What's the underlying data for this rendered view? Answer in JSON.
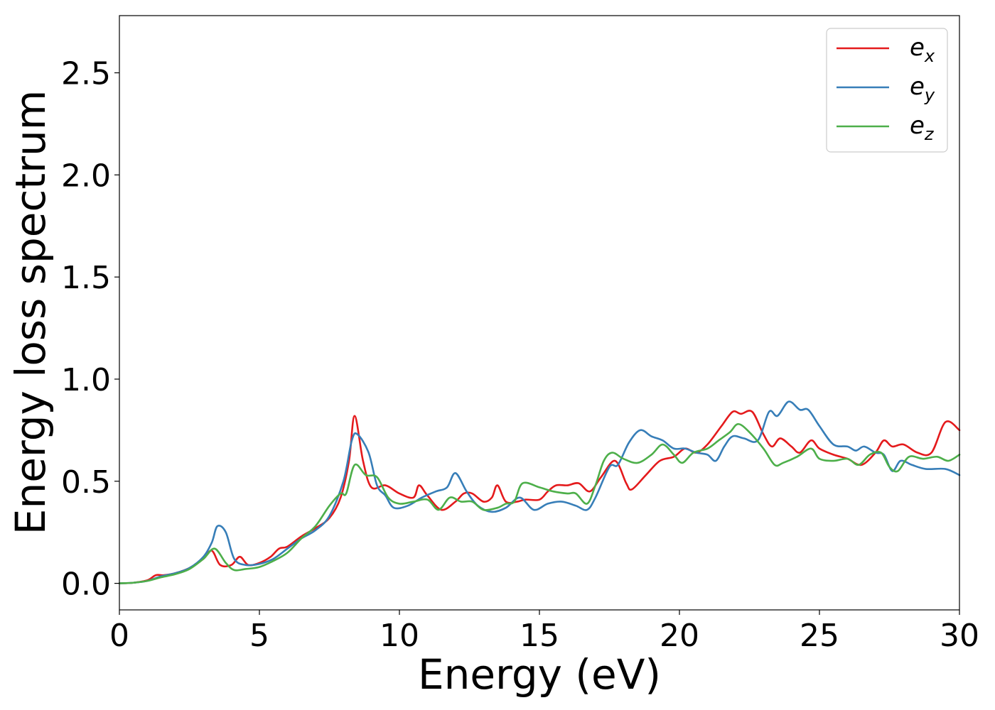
{
  "chart_data": {
    "type": "line",
    "xlabel": "Energy (eV)",
    "ylabel": "Energy loss spectrum",
    "xlim": [
      0,
      30
    ],
    "ylim": [
      -0.13,
      2.78
    ],
    "xticks": [
      0,
      5,
      10,
      15,
      20,
      25,
      30
    ],
    "xtick_labels": [
      "0",
      "5",
      "10",
      "15",
      "20",
      "25",
      "30"
    ],
    "yticks": [
      0.0,
      0.5,
      1.0,
      1.5,
      2.0,
      2.5
    ],
    "ytick_labels": [
      "0.0",
      "0.5",
      "1.0",
      "1.5",
      "2.0",
      "2.5"
    ],
    "grid": false,
    "legend_position": "top-right",
    "series": [
      {
        "name": "e",
        "subscript": "x",
        "color": "#e41a1c",
        "points": [
          [
            0,
            0
          ],
          [
            0.5,
            0.003
          ],
          [
            1,
            0.015
          ],
          [
            1.3,
            0.04
          ],
          [
            1.6,
            0.04
          ],
          [
            2,
            0.05
          ],
          [
            2.5,
            0.075
          ],
          [
            3,
            0.12
          ],
          [
            3.3,
            0.16
          ],
          [
            3.6,
            0.09
          ],
          [
            4,
            0.09
          ],
          [
            4.3,
            0.13
          ],
          [
            4.6,
            0.09
          ],
          [
            5,
            0.1
          ],
          [
            5.4,
            0.13
          ],
          [
            5.7,
            0.17
          ],
          [
            6,
            0.18
          ],
          [
            6.5,
            0.23
          ],
          [
            7,
            0.27
          ],
          [
            7.5,
            0.32
          ],
          [
            7.9,
            0.42
          ],
          [
            8.2,
            0.6
          ],
          [
            8.4,
            0.82
          ],
          [
            8.7,
            0.6
          ],
          [
            9,
            0.47
          ],
          [
            9.5,
            0.48
          ],
          [
            10,
            0.44
          ],
          [
            10.5,
            0.42
          ],
          [
            10.7,
            0.48
          ],
          [
            11,
            0.43
          ],
          [
            11.5,
            0.36
          ],
          [
            12,
            0.4
          ],
          [
            12.3,
            0.44
          ],
          [
            12.6,
            0.44
          ],
          [
            13,
            0.4
          ],
          [
            13.3,
            0.42
          ],
          [
            13.5,
            0.48
          ],
          [
            13.8,
            0.4
          ],
          [
            14.2,
            0.4
          ],
          [
            14.5,
            0.41
          ],
          [
            15,
            0.41
          ],
          [
            15.3,
            0.45
          ],
          [
            15.6,
            0.48
          ],
          [
            16,
            0.48
          ],
          [
            16.4,
            0.49
          ],
          [
            16.8,
            0.45
          ],
          [
            17.2,
            0.52
          ],
          [
            17.7,
            0.6
          ],
          [
            18.1,
            0.49
          ],
          [
            18.3,
            0.46
          ],
          [
            18.8,
            0.53
          ],
          [
            19.3,
            0.6
          ],
          [
            19.8,
            0.62
          ],
          [
            20.2,
            0.66
          ],
          [
            20.6,
            0.64
          ],
          [
            21,
            0.68
          ],
          [
            21.5,
            0.77
          ],
          [
            21.9,
            0.84
          ],
          [
            22.2,
            0.83
          ],
          [
            22.6,
            0.84
          ],
          [
            23,
            0.73
          ],
          [
            23.3,
            0.67
          ],
          [
            23.6,
            0.71
          ],
          [
            24,
            0.67
          ],
          [
            24.3,
            0.64
          ],
          [
            24.7,
            0.7
          ],
          [
            25,
            0.66
          ],
          [
            25.5,
            0.63
          ],
          [
            26,
            0.61
          ],
          [
            26.5,
            0.58
          ],
          [
            27,
            0.64
          ],
          [
            27.3,
            0.7
          ],
          [
            27.6,
            0.67
          ],
          [
            28,
            0.68
          ],
          [
            28.5,
            0.64
          ],
          [
            29,
            0.64
          ],
          [
            29.5,
            0.79
          ],
          [
            30,
            0.75
          ]
        ]
      },
      {
        "name": "e",
        "subscript": "y",
        "color": "#377eb8",
        "points": [
          [
            0,
            0
          ],
          [
            0.5,
            0.003
          ],
          [
            1,
            0.012
          ],
          [
            1.5,
            0.035
          ],
          [
            2,
            0.05
          ],
          [
            2.5,
            0.075
          ],
          [
            3,
            0.13
          ],
          [
            3.3,
            0.2
          ],
          [
            3.5,
            0.28
          ],
          [
            3.8,
            0.25
          ],
          [
            4.1,
            0.12
          ],
          [
            4.5,
            0.09
          ],
          [
            5,
            0.095
          ],
          [
            5.5,
            0.12
          ],
          [
            6,
            0.17
          ],
          [
            6.5,
            0.22
          ],
          [
            7,
            0.26
          ],
          [
            7.5,
            0.33
          ],
          [
            8,
            0.5
          ],
          [
            8.3,
            0.7
          ],
          [
            8.5,
            0.73
          ],
          [
            8.9,
            0.64
          ],
          [
            9.2,
            0.48
          ],
          [
            9.5,
            0.43
          ],
          [
            9.8,
            0.37
          ],
          [
            10.3,
            0.38
          ],
          [
            10.8,
            0.42
          ],
          [
            11.3,
            0.45
          ],
          [
            11.7,
            0.47
          ],
          [
            12,
            0.54
          ],
          [
            12.4,
            0.45
          ],
          [
            12.8,
            0.38
          ],
          [
            13.3,
            0.35
          ],
          [
            13.8,
            0.37
          ],
          [
            14.3,
            0.42
          ],
          [
            14.8,
            0.36
          ],
          [
            15.3,
            0.39
          ],
          [
            15.8,
            0.4
          ],
          [
            16.3,
            0.38
          ],
          [
            16.7,
            0.36
          ],
          [
            17,
            0.42
          ],
          [
            17.5,
            0.57
          ],
          [
            17.8,
            0.58
          ],
          [
            18.2,
            0.69
          ],
          [
            18.6,
            0.75
          ],
          [
            19,
            0.72
          ],
          [
            19.4,
            0.7
          ],
          [
            19.8,
            0.66
          ],
          [
            20.2,
            0.66
          ],
          [
            20.6,
            0.64
          ],
          [
            21,
            0.63
          ],
          [
            21.3,
            0.6
          ],
          [
            21.6,
            0.67
          ],
          [
            21.9,
            0.72
          ],
          [
            22.3,
            0.71
          ],
          [
            22.8,
            0.7
          ],
          [
            23.2,
            0.84
          ],
          [
            23.5,
            0.82
          ],
          [
            23.9,
            0.89
          ],
          [
            24.3,
            0.85
          ],
          [
            24.6,
            0.85
          ],
          [
            25,
            0.77
          ],
          [
            25.5,
            0.68
          ],
          [
            26,
            0.67
          ],
          [
            26.3,
            0.65
          ],
          [
            26.6,
            0.67
          ],
          [
            27,
            0.64
          ],
          [
            27.3,
            0.63
          ],
          [
            27.6,
            0.55
          ],
          [
            27.9,
            0.6
          ],
          [
            28.3,
            0.58
          ],
          [
            28.8,
            0.56
          ],
          [
            29.5,
            0.56
          ],
          [
            30,
            0.53
          ]
        ]
      },
      {
        "name": "e",
        "subscript": "z",
        "color": "#4daf4a",
        "points": [
          [
            0,
            0
          ],
          [
            0.5,
            0.003
          ],
          [
            1,
            0.012
          ],
          [
            1.5,
            0.03
          ],
          [
            2,
            0.045
          ],
          [
            2.5,
            0.07
          ],
          [
            3,
            0.12
          ],
          [
            3.4,
            0.17
          ],
          [
            3.8,
            0.1
          ],
          [
            4.1,
            0.065
          ],
          [
            4.5,
            0.07
          ],
          [
            5,
            0.08
          ],
          [
            5.5,
            0.11
          ],
          [
            6,
            0.15
          ],
          [
            6.5,
            0.22
          ],
          [
            7,
            0.28
          ],
          [
            7.5,
            0.38
          ],
          [
            7.9,
            0.44
          ],
          [
            8.1,
            0.44
          ],
          [
            8.4,
            0.58
          ],
          [
            8.8,
            0.53
          ],
          [
            9.2,
            0.52
          ],
          [
            9.6,
            0.42
          ],
          [
            10,
            0.39
          ],
          [
            10.5,
            0.4
          ],
          [
            11,
            0.41
          ],
          [
            11.4,
            0.36
          ],
          [
            11.8,
            0.42
          ],
          [
            12.2,
            0.4
          ],
          [
            12.6,
            0.4
          ],
          [
            13,
            0.36
          ],
          [
            13.5,
            0.37
          ],
          [
            13.8,
            0.39
          ],
          [
            14.1,
            0.4
          ],
          [
            14.4,
            0.49
          ],
          [
            15,
            0.47
          ],
          [
            15.5,
            0.45
          ],
          [
            16,
            0.44
          ],
          [
            16.3,
            0.44
          ],
          [
            16.7,
            0.39
          ],
          [
            17,
            0.48
          ],
          [
            17.3,
            0.6
          ],
          [
            17.6,
            0.64
          ],
          [
            18,
            0.61
          ],
          [
            18.5,
            0.59
          ],
          [
            19,
            0.63
          ],
          [
            19.4,
            0.68
          ],
          [
            19.8,
            0.63
          ],
          [
            20.1,
            0.59
          ],
          [
            20.5,
            0.64
          ],
          [
            21,
            0.66
          ],
          [
            21.4,
            0.7
          ],
          [
            21.8,
            0.74
          ],
          [
            22.1,
            0.78
          ],
          [
            22.5,
            0.74
          ],
          [
            23,
            0.66
          ],
          [
            23.4,
            0.58
          ],
          [
            23.7,
            0.59
          ],
          [
            24.2,
            0.62
          ],
          [
            24.7,
            0.66
          ],
          [
            25,
            0.61
          ],
          [
            25.5,
            0.6
          ],
          [
            26,
            0.61
          ],
          [
            26.4,
            0.58
          ],
          [
            26.8,
            0.63
          ],
          [
            27.2,
            0.64
          ],
          [
            27.5,
            0.57
          ],
          [
            27.8,
            0.55
          ],
          [
            28.2,
            0.62
          ],
          [
            28.7,
            0.61
          ],
          [
            29.2,
            0.62
          ],
          [
            29.6,
            0.6
          ],
          [
            30,
            0.63
          ]
        ]
      }
    ]
  }
}
